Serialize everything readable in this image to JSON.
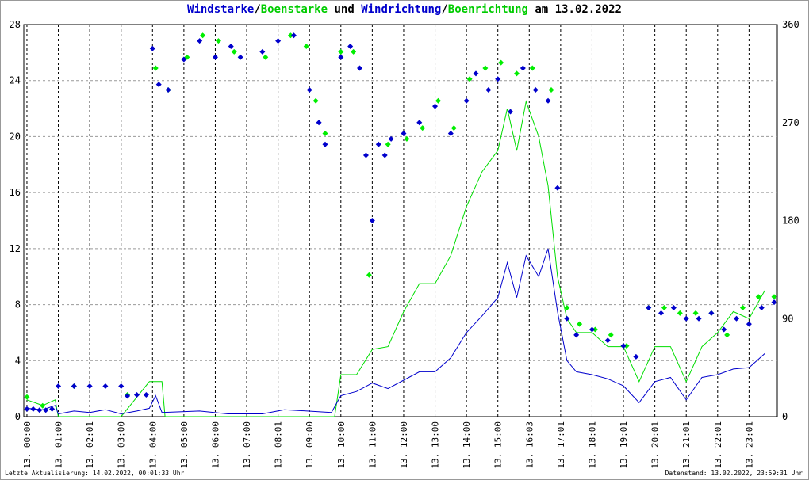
{
  "chart_data": {
    "type": "line",
    "title_parts": [
      {
        "text": "Windstarke",
        "color": "#0000cc"
      },
      {
        "text": "/",
        "color": "#000000"
      },
      {
        "text": "Boenstarke",
        "color": "#00cc00"
      },
      {
        "text": " und ",
        "color": "#000000"
      },
      {
        "text": "Windrichtung",
        "color": "#0000cc"
      },
      {
        "text": "/",
        "color": "#000000"
      },
      {
        "text": "Boenrichtung",
        "color": "#00cc00"
      },
      {
        "text": " am 13.02.2022",
        "color": "#000000"
      }
    ],
    "x_ticks": [
      "13. 00:00",
      "13. 01:00",
      "13. 02:01",
      "13. 03:00",
      "13. 04:00",
      "13. 05:00",
      "13. 06:00",
      "13. 07:00",
      "13. 08:01",
      "13. 09:00",
      "13. 10:00",
      "13. 11:00",
      "13. 12:00",
      "13. 13:00",
      "13. 14:00",
      "13. 15:00",
      "13. 16:03",
      "13. 17:01",
      "13. 18:01",
      "13. 19:01",
      "13. 20:01",
      "13. 21:01",
      "13. 22:01",
      "13. 23:01"
    ],
    "xlim_hours": [
      -0.1,
      23.9
    ],
    "y_left_ticks": [
      0,
      4,
      8,
      12,
      16,
      20,
      24,
      28
    ],
    "ylim_left": [
      0,
      28
    ],
    "y_right_ticks": [
      0,
      90,
      180,
      270,
      360
    ],
    "ylim_right": [
      0,
      360
    ],
    "grid": true,
    "colors": {
      "windstarke": "#0000cc",
      "boenstarke": "#00dd00",
      "windrichtung": "#0000cc",
      "boenrichtung": "#00ee00"
    },
    "series": [
      {
        "kind": "speed-line",
        "points": [
          [
            0.0,
            0.6
          ],
          [
            0.5,
            0.5
          ],
          [
            0.9,
            0.8
          ],
          [
            1.0,
            0.2
          ],
          [
            1.5,
            0.4
          ],
          [
            2.0,
            0.3
          ],
          [
            2.5,
            0.5
          ],
          [
            3.0,
            0.2
          ],
          [
            3.5,
            0.4
          ],
          [
            3.9,
            0.6
          ],
          [
            4.1,
            1.5
          ],
          [
            4.3,
            0.3
          ],
          [
            5.5,
            0.4
          ],
          [
            6.4,
            0.2
          ],
          [
            7.5,
            0.2
          ],
          [
            8.2,
            0.5
          ],
          [
            9.7,
            0.3
          ],
          [
            10.0,
            1.5
          ],
          [
            10.5,
            1.8
          ],
          [
            11.0,
            2.4
          ],
          [
            11.5,
            2.0
          ],
          [
            12.0,
            2.6
          ],
          [
            12.5,
            3.2
          ],
          [
            13.0,
            3.2
          ],
          [
            13.5,
            4.2
          ],
          [
            14.0,
            6.0
          ],
          [
            14.5,
            7.2
          ],
          [
            15.0,
            8.5
          ],
          [
            15.3,
            11.0
          ],
          [
            15.6,
            8.5
          ],
          [
            15.9,
            11.5
          ],
          [
            16.3,
            10.0
          ],
          [
            16.6,
            12.0
          ],
          [
            16.9,
            7.5
          ],
          [
            17.2,
            4.0
          ],
          [
            17.5,
            3.2
          ],
          [
            18.0,
            3.0
          ],
          [
            18.5,
            2.7
          ],
          [
            19.0,
            2.2
          ],
          [
            19.5,
            1.0
          ],
          [
            20.0,
            2.5
          ],
          [
            20.5,
            2.8
          ],
          [
            21.0,
            1.2
          ],
          [
            21.5,
            2.8
          ],
          [
            22.0,
            3.0
          ],
          [
            22.5,
            3.4
          ],
          [
            23.0,
            3.5
          ],
          [
            23.5,
            4.5
          ]
        ]
      },
      {
        "kind": "gust-line",
        "points": [
          [
            0.0,
            1.2
          ],
          [
            0.5,
            0.8
          ],
          [
            0.9,
            1.2
          ],
          [
            1.0,
            0.0
          ],
          [
            3.0,
            0.0
          ],
          [
            3.9,
            2.5
          ],
          [
            4.1,
            2.5
          ],
          [
            4.3,
            2.5
          ],
          [
            4.4,
            0.0
          ],
          [
            9.8,
            0.0
          ],
          [
            10.0,
            3.0
          ],
          [
            10.5,
            3.0
          ],
          [
            11.0,
            4.8
          ],
          [
            11.5,
            5.0
          ],
          [
            12.0,
            7.5
          ],
          [
            12.5,
            9.5
          ],
          [
            13.0,
            9.5
          ],
          [
            13.5,
            11.5
          ],
          [
            14.0,
            15.0
          ],
          [
            14.5,
            17.5
          ],
          [
            15.0,
            19.0
          ],
          [
            15.3,
            22.0
          ],
          [
            15.6,
            19.0
          ],
          [
            15.9,
            22.5
          ],
          [
            16.3,
            20.0
          ],
          [
            16.6,
            16.5
          ],
          [
            16.9,
            10.0
          ],
          [
            17.2,
            7.0
          ],
          [
            17.5,
            6.0
          ],
          [
            18.0,
            6.0
          ],
          [
            18.5,
            5.0
          ],
          [
            19.0,
            5.0
          ],
          [
            19.5,
            2.5
          ],
          [
            20.0,
            5.0
          ],
          [
            20.5,
            5.0
          ],
          [
            21.0,
            2.5
          ],
          [
            21.5,
            5.0
          ],
          [
            22.0,
            6.0
          ],
          [
            22.5,
            7.5
          ],
          [
            23.0,
            7.0
          ],
          [
            23.5,
            9.0
          ]
        ]
      },
      {
        "kind": "direction-points",
        "points": [
          [
            0.0,
            7
          ],
          [
            0.2,
            7
          ],
          [
            0.4,
            6
          ],
          [
            0.6,
            6
          ],
          [
            0.8,
            7
          ],
          [
            1.0,
            28
          ],
          [
            1.5,
            28
          ],
          [
            2.0,
            28
          ],
          [
            2.5,
            28
          ],
          [
            3.0,
            28
          ],
          [
            3.2,
            19
          ],
          [
            3.5,
            20
          ],
          [
            3.8,
            20
          ],
          [
            4.0,
            338
          ],
          [
            4.2,
            305
          ],
          [
            4.5,
            300
          ],
          [
            5.0,
            328
          ],
          [
            5.5,
            345
          ],
          [
            6.0,
            330
          ],
          [
            6.5,
            340
          ],
          [
            6.8,
            330
          ],
          [
            7.5,
            335
          ],
          [
            8.0,
            345
          ],
          [
            8.5,
            350
          ],
          [
            9.0,
            300
          ],
          [
            9.3,
            270
          ],
          [
            9.5,
            250
          ],
          [
            10.0,
            330
          ],
          [
            10.3,
            340
          ],
          [
            10.6,
            320
          ],
          [
            10.8,
            240
          ],
          [
            11.0,
            180
          ],
          [
            11.2,
            250
          ],
          [
            11.4,
            240
          ],
          [
            11.6,
            255
          ],
          [
            12.0,
            260
          ],
          [
            12.5,
            270
          ],
          [
            13.0,
            285
          ],
          [
            13.5,
            260
          ],
          [
            14.0,
            290
          ],
          [
            14.3,
            315
          ],
          [
            14.7,
            300
          ],
          [
            15.0,
            310
          ],
          [
            15.4,
            280
          ],
          [
            15.8,
            320
          ],
          [
            16.2,
            300
          ],
          [
            16.6,
            290
          ],
          [
            16.9,
            210
          ],
          [
            17.2,
            90
          ],
          [
            17.5,
            75
          ],
          [
            18.0,
            80
          ],
          [
            18.5,
            70
          ],
          [
            19.0,
            65
          ],
          [
            19.4,
            55
          ],
          [
            19.8,
            100
          ],
          [
            20.2,
            95
          ],
          [
            20.6,
            100
          ],
          [
            21.0,
            90
          ],
          [
            21.4,
            90
          ],
          [
            21.8,
            95
          ],
          [
            22.2,
            80
          ],
          [
            22.6,
            90
          ],
          [
            23.0,
            85
          ],
          [
            23.4,
            100
          ],
          [
            23.8,
            105
          ]
        ]
      },
      {
        "kind": "gust-direction-points",
        "points": [
          [
            0.0,
            18
          ],
          [
            0.5,
            10
          ],
          [
            1.5,
            28
          ],
          [
            3.2,
            20
          ],
          [
            4.1,
            320
          ],
          [
            4.5,
            300
          ],
          [
            5.1,
            330
          ],
          [
            5.6,
            350
          ],
          [
            6.1,
            345
          ],
          [
            6.6,
            335
          ],
          [
            7.6,
            330
          ],
          [
            8.4,
            350
          ],
          [
            8.9,
            340
          ],
          [
            9.2,
            290
          ],
          [
            9.5,
            260
          ],
          [
            10.0,
            335
          ],
          [
            10.4,
            335
          ],
          [
            10.9,
            130
          ],
          [
            11.5,
            250
          ],
          [
            12.1,
            255
          ],
          [
            12.6,
            265
          ],
          [
            13.1,
            290
          ],
          [
            13.6,
            265
          ],
          [
            14.1,
            310
          ],
          [
            14.6,
            320
          ],
          [
            15.1,
            325
          ],
          [
            15.6,
            315
          ],
          [
            16.1,
            320
          ],
          [
            16.7,
            300
          ],
          [
            17.2,
            100
          ],
          [
            17.6,
            85
          ],
          [
            18.1,
            80
          ],
          [
            18.6,
            75
          ],
          [
            19.1,
            65
          ],
          [
            19.8,
            100
          ],
          [
            20.3,
            100
          ],
          [
            20.8,
            95
          ],
          [
            21.3,
            95
          ],
          [
            21.8,
            95
          ],
          [
            22.3,
            75
          ],
          [
            22.8,
            100
          ],
          [
            23.3,
            110
          ],
          [
            23.8,
            110
          ]
        ]
      }
    ]
  },
  "footer": {
    "left": "Letzte Aktualisierung: 14.02.2022, 00:01:33 Uhr",
    "right": "Datenstand: 13.02.2022, 23:59:31 Uhr"
  }
}
